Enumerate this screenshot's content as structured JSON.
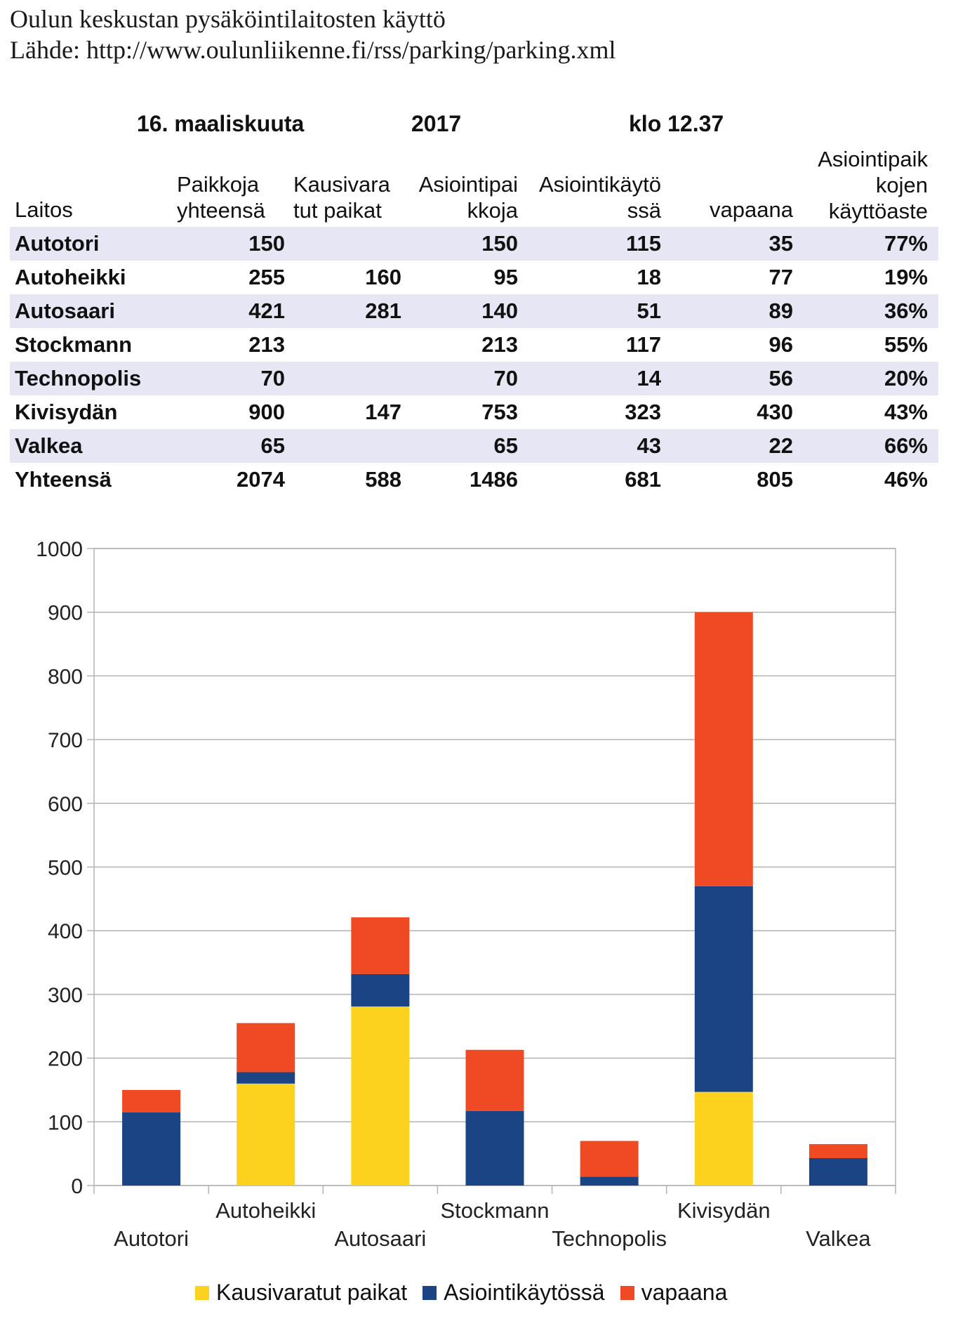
{
  "header": {
    "title": "Oulun keskustan pysäköintilaitosten käyttö",
    "source": "Lähde: http://www.oulunliikenne.fi/rss/parking/parking.xml"
  },
  "table": {
    "date": {
      "day_month": "16. maaliskuuta",
      "year": "2017",
      "time": "klo  12.37"
    },
    "columns": [
      "Laitos",
      "Paikkoja\nyhteensä",
      "Kausivara\ntut paikat",
      "Asiointipai\nkkoja",
      "Asiointikäytö\nssä",
      "vapaana",
      "Asiointipaik\nkojen\nkäyttöaste"
    ],
    "rows": [
      [
        "Autotori",
        "150",
        "",
        "150",
        "115",
        "35",
        "77%"
      ],
      [
        "Autoheikki",
        "255",
        "160",
        "95",
        "18",
        "77",
        "19%"
      ],
      [
        "Autosaari",
        "421",
        "281",
        "140",
        "51",
        "89",
        "36%"
      ],
      [
        "Stockmann",
        "213",
        "",
        "213",
        "117",
        "96",
        "55%"
      ],
      [
        "Technopolis",
        "70",
        "",
        "70",
        "14",
        "56",
        "20%"
      ],
      [
        "Kivisydän",
        "900",
        "147",
        "753",
        "323",
        "430",
        "43%"
      ],
      [
        "Valkea",
        "65",
        "",
        "65",
        "43",
        "22",
        "66%"
      ],
      [
        "Yhteensä",
        "2074",
        "588",
        "1486",
        "681",
        "805",
        "46%"
      ]
    ]
  },
  "chart_data": {
    "type": "bar",
    "stacked": true,
    "categories": [
      "Autotori",
      "Autoheikki",
      "Autosaari",
      "Stockmann",
      "Technopolis",
      "Kivisydän",
      "Valkea"
    ],
    "series": [
      {
        "name": "Kausivaratut paikat",
        "color": "#fdd21f",
        "values": [
          0,
          160,
          281,
          0,
          0,
          147,
          0
        ]
      },
      {
        "name": "Asiointikäytössä",
        "color": "#1a4484",
        "values": [
          115,
          18,
          51,
          117,
          14,
          323,
          43
        ]
      },
      {
        "name": "vapaana",
        "color": "#ef4a23",
        "values": [
          35,
          77,
          89,
          96,
          56,
          430,
          22
        ]
      }
    ],
    "ylim": [
      0,
      1000
    ],
    "yticks": [
      0,
      100,
      200,
      300,
      400,
      500,
      600,
      700,
      800,
      900,
      1000
    ],
    "grid": true,
    "legend_position": "bottom"
  }
}
